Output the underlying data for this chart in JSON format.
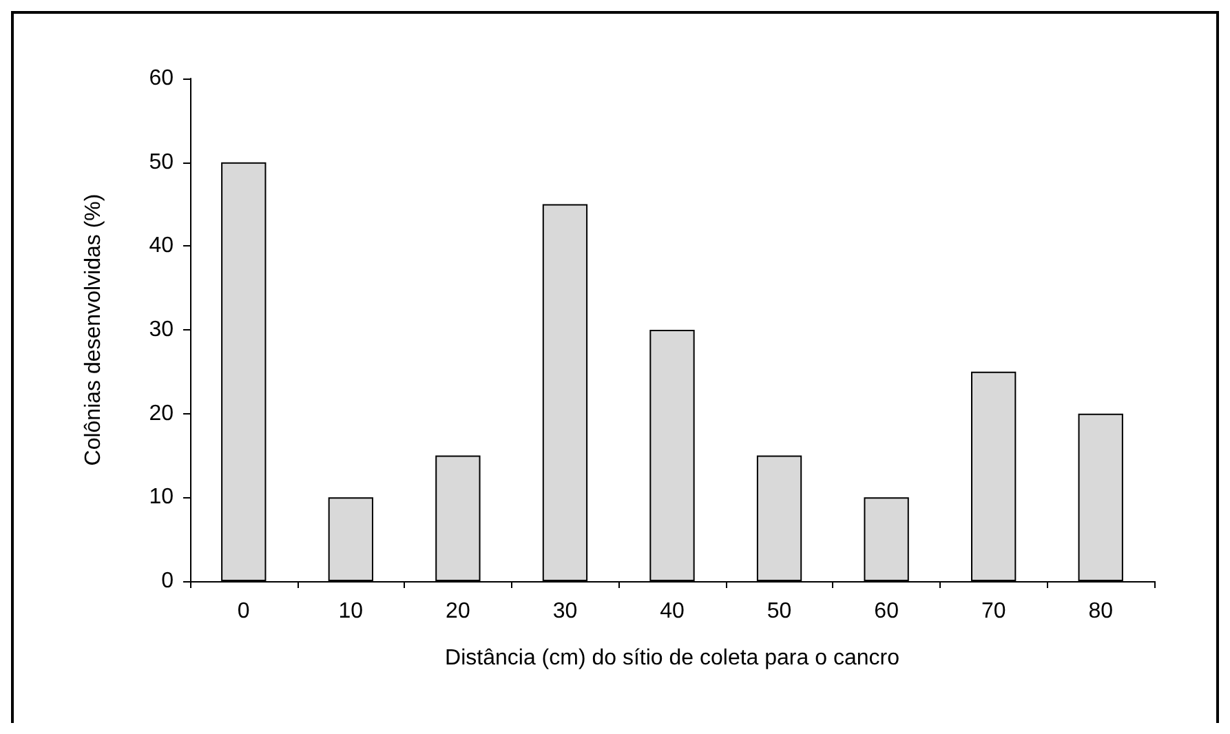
{
  "chart_data": {
    "type": "bar",
    "xlabel": "Distância (cm) do sítio de coleta para o cancro",
    "ylabel": "Colônias desenvolvidas (%)",
    "categories": [
      "0",
      "10",
      "20",
      "30",
      "40",
      "50",
      "60",
      "70",
      "80"
    ],
    "values": [
      50,
      10,
      15,
      45,
      30,
      15,
      10,
      25,
      20
    ],
    "color": "#d9d9d9",
    "ylim": [
      0,
      60
    ],
    "yticks": [
      0,
      10,
      20,
      30,
      40,
      50,
      60
    ],
    "grid": false
  }
}
